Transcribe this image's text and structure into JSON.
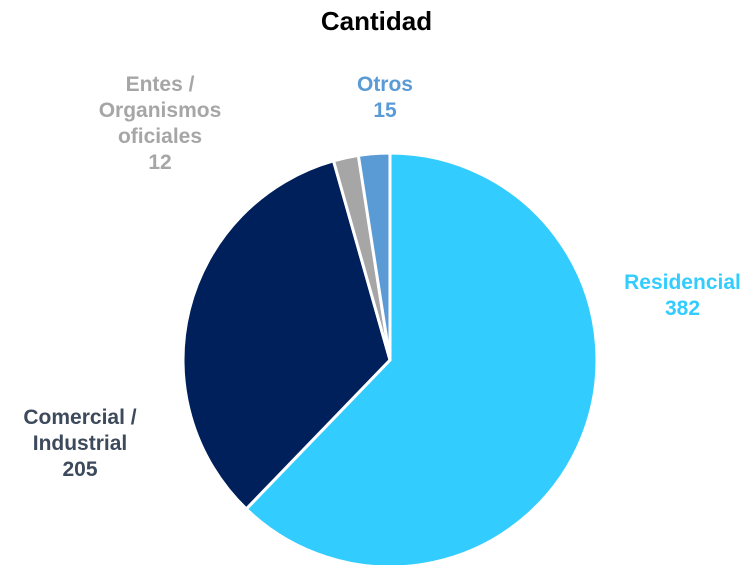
{
  "chart_data": {
    "type": "pie",
    "title": "Cantidad",
    "categories": [
      "Residencial",
      "Comercial / Industrial",
      "Entes / Organismos oficiales",
      "Otros"
    ],
    "values": [
      382,
      205,
      12,
      15
    ],
    "colors": [
      "#33ccff",
      "#00205b",
      "#a6a6a6",
      "#5b9bd5"
    ]
  }
}
